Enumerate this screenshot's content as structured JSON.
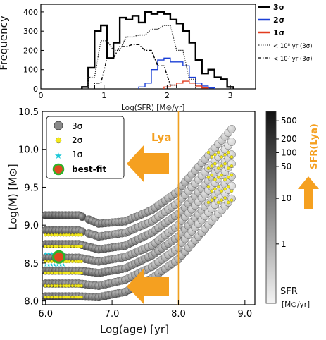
{
  "top_panel": {
    "ylabel": "Frequency",
    "xlabel": "Log(SFR) [M⊙/yr]",
    "yticks": [
      "0",
      "100",
      "200",
      "300",
      "400"
    ],
    "xticks": [
      "0",
      "1",
      "2",
      "3"
    ],
    "legend": [
      {
        "label": "3σ",
        "color": "#000000",
        "style": "solid"
      },
      {
        "label": "2σ",
        "color": "#1a3fd6",
        "style": "solid"
      },
      {
        "label": "1σ",
        "color": "#e23b1e",
        "style": "solid"
      },
      {
        "label": "< 10⁸ yr  (3σ)",
        "color": "#333333",
        "style": "dotted"
      },
      {
        "label": "< 10⁷ yr  (3σ)",
        "color": "#000000",
        "style": "dashdot"
      }
    ]
  },
  "main_panel": {
    "ylabel": "Log(M) [M⊙]",
    "xlabel": "Log(age) [yr]",
    "xticks": [
      "6.0",
      "7.0",
      "8.0",
      "9.0"
    ],
    "yticks": [
      "8.0",
      "8.5",
      "9.0",
      "9.5",
      "10.0",
      "10.5"
    ],
    "legend": [
      {
        "label": "3σ",
        "marker": "gray-circle"
      },
      {
        "label": "2σ",
        "marker": "yellow-dot"
      },
      {
        "label": "1σ",
        "marker": "cyan-star"
      },
      {
        "label": "best-fit",
        "marker": "red-green-circle"
      }
    ],
    "annotation_lya": "Lya",
    "arrow_color": "#f5a020",
    "line_color": "#f0a020"
  },
  "colorbar": {
    "ticks": [
      "500",
      "200",
      "100",
      "50",
      "10",
      "1"
    ],
    "side_label": "SFR(Lya)",
    "title": "SFR",
    "unit": "[M⊙/yr]"
  },
  "chart_data": [
    {
      "type": "line",
      "xlabel": "Log(SFR) [M⊙/yr]",
      "ylabel": "Frequency",
      "xlim": [
        0,
        3.4
      ],
      "ylim": [
        0,
        440
      ],
      "series": [
        {
          "name": "3σ",
          "x": [
            0.7,
            0.8,
            0.9,
            1.0,
            1.1,
            1.2,
            1.3,
            1.4,
            1.5,
            1.6,
            1.7,
            1.8,
            1.9,
            2.0,
            2.1,
            2.2,
            2.3,
            2.4,
            2.5,
            2.6,
            2.7,
            2.8,
            2.9,
            3.0
          ],
          "y": [
            10,
            110,
            300,
            330,
            160,
            240,
            370,
            360,
            380,
            345,
            400,
            390,
            400,
            390,
            360,
            340,
            300,
            240,
            150,
            80,
            100,
            60,
            50,
            10
          ]
        },
        {
          "name": "2σ",
          "x": [
            1.6,
            1.7,
            1.8,
            1.9,
            2.0,
            2.1,
            2.2,
            2.3,
            2.4,
            2.5,
            2.6,
            2.7
          ],
          "y": [
            10,
            30,
            100,
            150,
            160,
            140,
            140,
            120,
            60,
            30,
            15,
            5
          ]
        },
        {
          "name": "1σ",
          "x": [
            2.0,
            2.1,
            2.2,
            2.3,
            2.4,
            2.5,
            2.6
          ],
          "y": [
            10,
            20,
            30,
            40,
            30,
            15,
            5
          ]
        },
        {
          "name": "< 10⁸ yr  (3σ)",
          "x": [
            0.8,
            1.0,
            1.2,
            1.4,
            1.6,
            1.8,
            2.0,
            2.2,
            2.4
          ],
          "y": [
            60,
            250,
            200,
            270,
            280,
            310,
            330,
            200,
            50
          ]
        },
        {
          "name": "< 10⁷ yr  (3σ)",
          "x": [
            0.9,
            1.1,
            1.3,
            1.5,
            1.7,
            1.9,
            2.1
          ],
          "y": [
            30,
            160,
            220,
            230,
            200,
            120,
            20
          ]
        }
      ]
    },
    {
      "type": "scatter",
      "xlabel": "Log(age) [yr]",
      "ylabel": "Log(M) [M⊙]",
      "xlim": [
        5.95,
        9.15
      ],
      "ylim": [
        7.95,
        10.5
      ],
      "tracks_3sigma": [
        {
          "x": [
            6.0,
            6.5,
            6.8,
            7.2,
            7.6,
            8.0,
            8.4,
            8.8
          ],
          "y": [
            9.13,
            9.13,
            9.02,
            9.05,
            9.2,
            9.45,
            9.85,
            10.25
          ]
        },
        {
          "x": [
            6.0,
            6.5,
            6.8,
            7.2,
            7.6,
            8.0,
            8.4,
            8.8
          ],
          "y": [
            8.93,
            8.93,
            8.85,
            8.9,
            9.05,
            9.3,
            9.7,
            10.1
          ]
        },
        {
          "x": [
            6.0,
            6.5,
            6.8,
            7.2,
            7.6,
            8.0,
            8.4,
            8.8
          ],
          "y": [
            8.75,
            8.75,
            8.68,
            8.73,
            8.9,
            9.15,
            9.55,
            9.95
          ]
        },
        {
          "x": [
            6.0,
            6.5,
            6.8,
            7.2,
            7.6,
            8.0,
            8.4,
            8.8
          ],
          "y": [
            8.57,
            8.57,
            8.52,
            8.58,
            8.73,
            9.0,
            9.4,
            9.8
          ]
        },
        {
          "x": [
            6.0,
            6.5,
            6.8,
            7.2,
            7.6,
            8.0,
            8.4,
            8.8
          ],
          "y": [
            8.4,
            8.4,
            8.37,
            8.43,
            8.6,
            8.85,
            9.25,
            9.65
          ]
        },
        {
          "x": [
            6.0,
            6.5,
            6.8,
            7.2,
            7.6,
            8.0,
            8.4,
            8.8
          ],
          "y": [
            8.23,
            8.23,
            8.2,
            8.28,
            8.45,
            8.7,
            9.1,
            9.5
          ]
        },
        {
          "x": [
            6.0,
            6.5,
            6.8,
            7.2,
            7.6,
            8.0,
            8.4,
            8.8
          ],
          "y": [
            8.06,
            8.06,
            8.05,
            8.12,
            8.3,
            8.55,
            8.95,
            9.35
          ]
        }
      ],
      "points_2sigma": {
        "y_levels": [
          8.87,
          8.72,
          8.52,
          8.37,
          8.2,
          8.05
        ],
        "x_range": [
          6.0,
          6.55
        ]
      },
      "points_1sigma": {
        "y_levels": [
          8.63,
          8.48
        ],
        "x_range": [
          6.0,
          6.3
        ]
      },
      "best_fit": {
        "x": 6.2,
        "y": 8.58
      },
      "lya_age": 8.0
    }
  ]
}
